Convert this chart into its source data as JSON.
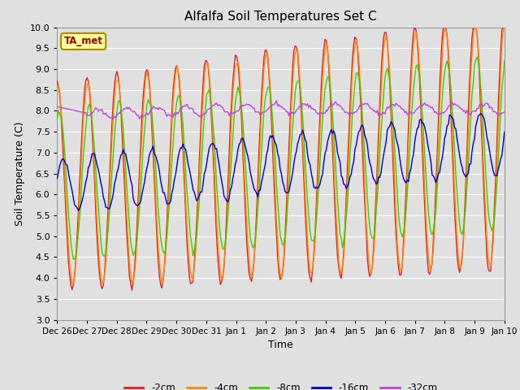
{
  "title": "Alfalfa Soil Temperatures Set C",
  "xlabel": "Time",
  "ylabel": "Soil Temperature (C)",
  "ylim": [
    3.0,
    10.0
  ],
  "yticks": [
    3.0,
    3.5,
    4.0,
    4.5,
    5.0,
    5.5,
    6.0,
    6.5,
    7.0,
    7.5,
    8.0,
    8.5,
    9.0,
    9.5,
    10.0
  ],
  "bg_color": "#e0e0e0",
  "plot_bg_color": "#e0e0e0",
  "grid_color": "#ffffff",
  "colors": {
    "-2cm": "#dd2222",
    "-4cm": "#ff8800",
    "-8cm": "#44cc00",
    "-16cm": "#0000cc",
    "-32cm": "#bb44dd"
  },
  "legend_label": "TA_met",
  "legend_box_color": "#ffff99",
  "legend_border_color": "#aa8800"
}
